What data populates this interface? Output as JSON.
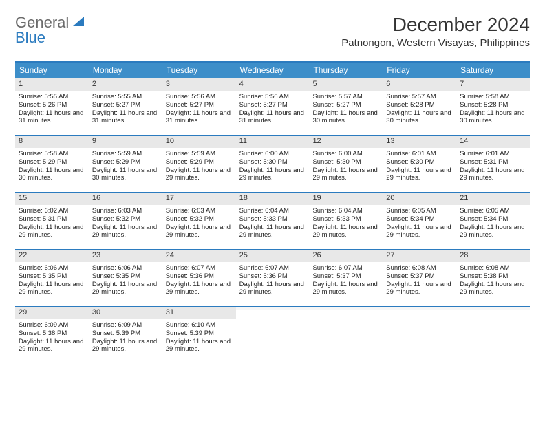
{
  "brand": {
    "part1": "General",
    "part2": "Blue"
  },
  "title": "December 2024",
  "location": "Patnongon, Western Visayas, Philippines",
  "colors": {
    "header_bg": "#3d8ec9",
    "border": "#2b7bbf",
    "daynum_bg": "#e8e8e8",
    "text": "#222222",
    "logo_gray": "#6b6b6b",
    "logo_blue": "#2b7bbf"
  },
  "dayHeaders": [
    "Sunday",
    "Monday",
    "Tuesday",
    "Wednesday",
    "Thursday",
    "Friday",
    "Saturday"
  ],
  "weeks": [
    [
      {
        "n": "1",
        "sr": "5:55 AM",
        "ss": "5:26 PM",
        "dl": "11 hours and 31 minutes."
      },
      {
        "n": "2",
        "sr": "5:55 AM",
        "ss": "5:27 PM",
        "dl": "11 hours and 31 minutes."
      },
      {
        "n": "3",
        "sr": "5:56 AM",
        "ss": "5:27 PM",
        "dl": "11 hours and 31 minutes."
      },
      {
        "n": "4",
        "sr": "5:56 AM",
        "ss": "5:27 PM",
        "dl": "11 hours and 31 minutes."
      },
      {
        "n": "5",
        "sr": "5:57 AM",
        "ss": "5:27 PM",
        "dl": "11 hours and 30 minutes."
      },
      {
        "n": "6",
        "sr": "5:57 AM",
        "ss": "5:28 PM",
        "dl": "11 hours and 30 minutes."
      },
      {
        "n": "7",
        "sr": "5:58 AM",
        "ss": "5:28 PM",
        "dl": "11 hours and 30 minutes."
      }
    ],
    [
      {
        "n": "8",
        "sr": "5:58 AM",
        "ss": "5:29 PM",
        "dl": "11 hours and 30 minutes."
      },
      {
        "n": "9",
        "sr": "5:59 AM",
        "ss": "5:29 PM",
        "dl": "11 hours and 30 minutes."
      },
      {
        "n": "10",
        "sr": "5:59 AM",
        "ss": "5:29 PM",
        "dl": "11 hours and 29 minutes."
      },
      {
        "n": "11",
        "sr": "6:00 AM",
        "ss": "5:30 PM",
        "dl": "11 hours and 29 minutes."
      },
      {
        "n": "12",
        "sr": "6:00 AM",
        "ss": "5:30 PM",
        "dl": "11 hours and 29 minutes."
      },
      {
        "n": "13",
        "sr": "6:01 AM",
        "ss": "5:30 PM",
        "dl": "11 hours and 29 minutes."
      },
      {
        "n": "14",
        "sr": "6:01 AM",
        "ss": "5:31 PM",
        "dl": "11 hours and 29 minutes."
      }
    ],
    [
      {
        "n": "15",
        "sr": "6:02 AM",
        "ss": "5:31 PM",
        "dl": "11 hours and 29 minutes."
      },
      {
        "n": "16",
        "sr": "6:03 AM",
        "ss": "5:32 PM",
        "dl": "11 hours and 29 minutes."
      },
      {
        "n": "17",
        "sr": "6:03 AM",
        "ss": "5:32 PM",
        "dl": "11 hours and 29 minutes."
      },
      {
        "n": "18",
        "sr": "6:04 AM",
        "ss": "5:33 PM",
        "dl": "11 hours and 29 minutes."
      },
      {
        "n": "19",
        "sr": "6:04 AM",
        "ss": "5:33 PM",
        "dl": "11 hours and 29 minutes."
      },
      {
        "n": "20",
        "sr": "6:05 AM",
        "ss": "5:34 PM",
        "dl": "11 hours and 29 minutes."
      },
      {
        "n": "21",
        "sr": "6:05 AM",
        "ss": "5:34 PM",
        "dl": "11 hours and 29 minutes."
      }
    ],
    [
      {
        "n": "22",
        "sr": "6:06 AM",
        "ss": "5:35 PM",
        "dl": "11 hours and 29 minutes."
      },
      {
        "n": "23",
        "sr": "6:06 AM",
        "ss": "5:35 PM",
        "dl": "11 hours and 29 minutes."
      },
      {
        "n": "24",
        "sr": "6:07 AM",
        "ss": "5:36 PM",
        "dl": "11 hours and 29 minutes."
      },
      {
        "n": "25",
        "sr": "6:07 AM",
        "ss": "5:36 PM",
        "dl": "11 hours and 29 minutes."
      },
      {
        "n": "26",
        "sr": "6:07 AM",
        "ss": "5:37 PM",
        "dl": "11 hours and 29 minutes."
      },
      {
        "n": "27",
        "sr": "6:08 AM",
        "ss": "5:37 PM",
        "dl": "11 hours and 29 minutes."
      },
      {
        "n": "28",
        "sr": "6:08 AM",
        "ss": "5:38 PM",
        "dl": "11 hours and 29 minutes."
      }
    ],
    [
      {
        "n": "29",
        "sr": "6:09 AM",
        "ss": "5:38 PM",
        "dl": "11 hours and 29 minutes."
      },
      {
        "n": "30",
        "sr": "6:09 AM",
        "ss": "5:39 PM",
        "dl": "11 hours and 29 minutes."
      },
      {
        "n": "31",
        "sr": "6:10 AM",
        "ss": "5:39 PM",
        "dl": "11 hours and 29 minutes."
      },
      {
        "empty": true
      },
      {
        "empty": true
      },
      {
        "empty": true
      },
      {
        "empty": true
      }
    ]
  ],
  "labels": {
    "sunrise": "Sunrise: ",
    "sunset": "Sunset: ",
    "daylight": "Daylight: "
  }
}
